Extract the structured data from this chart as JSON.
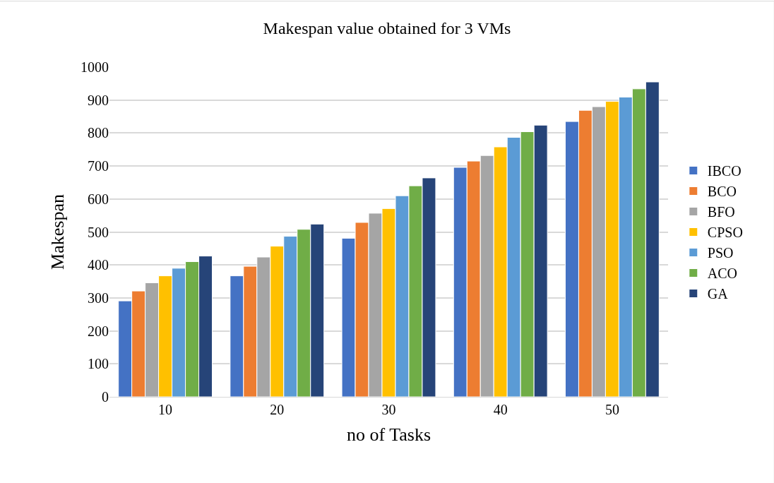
{
  "chart_data": {
    "type": "bar",
    "title": "Makespan value obtained for 3 VMs",
    "xlabel": "no of Tasks",
    "ylabel": "Makespan",
    "categories": [
      "10",
      "20",
      "30",
      "40",
      "50"
    ],
    "series": [
      {
        "name": "IBCO",
        "color": "#4472c4",
        "values": [
          291,
          367,
          481,
          696,
          835
        ]
      },
      {
        "name": "BCO",
        "color": "#ed7d31",
        "values": [
          321,
          396,
          529,
          715,
          869
        ]
      },
      {
        "name": "BFO",
        "color": "#a5a5a5",
        "values": [
          346,
          424,
          557,
          732,
          880
        ]
      },
      {
        "name": "CPSO",
        "color": "#ffc000",
        "values": [
          367,
          457,
          571,
          758,
          896
        ]
      },
      {
        "name": "PSO",
        "color": "#5b9bd5",
        "values": [
          390,
          487,
          610,
          787,
          909
        ]
      },
      {
        "name": "ACO",
        "color": "#70ad47",
        "values": [
          410,
          508,
          640,
          804,
          934
        ]
      },
      {
        "name": "GA",
        "color": "#264478",
        "values": [
          427,
          524,
          664,
          824,
          955
        ]
      }
    ],
    "ylim": [
      0,
      1000
    ],
    "yticks": [
      0,
      100,
      200,
      300,
      400,
      500,
      600,
      700,
      800,
      900,
      1000
    ],
    "grid": "y",
    "legend": "right"
  }
}
